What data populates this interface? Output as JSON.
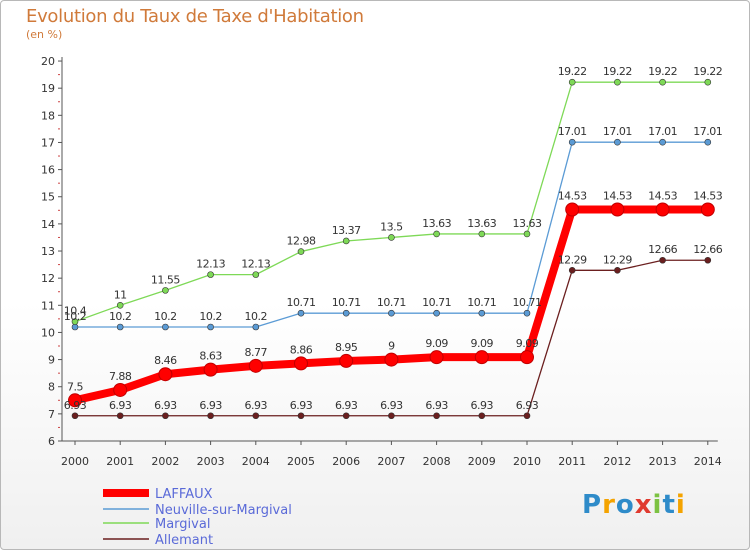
{
  "chart_data": {
    "type": "line",
    "title": "Evolution du Taux de Taxe d'Habitation",
    "ylabel": "(en %)",
    "x": [
      "2000",
      "2001",
      "2002",
      "2003",
      "2004",
      "2005",
      "2006",
      "2007",
      "2008",
      "2009",
      "2010",
      "2011",
      "2012",
      "2013",
      "2014"
    ],
    "ylim": [
      6,
      20
    ],
    "yticks": [
      "6",
      "7",
      "8",
      "9",
      "10",
      "11",
      "12",
      "13",
      "14",
      "15",
      "16",
      "17",
      "18",
      "19",
      "20"
    ],
    "grid": false,
    "legend": "bottom-left",
    "series": [
      {
        "name": "LAFFAUX",
        "color": "#ff0000",
        "values": [
          7.5,
          7.88,
          8.46,
          8.63,
          8.77,
          8.86,
          8.95,
          9,
          9.09,
          9.09,
          9.09,
          14.53,
          14.53,
          14.53,
          14.53
        ]
      },
      {
        "name": "Neuville-sur-Margival",
        "color": "#5b9bd5",
        "values": [
          10.2,
          10.2,
          10.2,
          10.2,
          10.2,
          10.71,
          10.71,
          10.71,
          10.71,
          10.71,
          10.71,
          17.01,
          17.01,
          17.01,
          17.01
        ]
      },
      {
        "name": "Margival",
        "color": "#7ed957",
        "values": [
          10.4,
          11,
          11.55,
          12.13,
          12.13,
          12.98,
          13.37,
          13.5,
          13.63,
          13.63,
          13.63,
          19.22,
          19.22,
          19.22,
          19.22
        ]
      },
      {
        "name": "Allemant",
        "color": "#6b1f1f",
        "values": [
          6.93,
          6.93,
          6.93,
          6.93,
          6.93,
          6.93,
          6.93,
          6.93,
          6.93,
          6.93,
          6.93,
          12.29,
          12.29,
          12.66,
          12.66
        ]
      }
    ]
  },
  "labels": {
    "LAFFAUX": [
      "7.5",
      "7.88",
      "8.46",
      "8.63",
      "8.77",
      "8.86",
      "8.95",
      "9",
      "9.09",
      "9.09",
      "9.09",
      "14.53",
      "14.53",
      "14.53",
      "14.53"
    ],
    "Neuville-sur-Margival": [
      "10.2",
      "10.2",
      "10.2",
      "10.2",
      "10.2",
      "10.71",
      "10.71",
      "10.71",
      "10.71",
      "10.71",
      "10.71",
      "17.01",
      "17.01",
      "17.01",
      "17.01"
    ],
    "Margival": [
      "10.4",
      "11",
      "11.55",
      "12.13",
      "12.13",
      "12.98",
      "13.37",
      "13.5",
      "13.63",
      "13.63",
      "13.63",
      "19.22",
      "19.22",
      "19.22",
      "19.22"
    ],
    "Allemant": [
      "6.93",
      "6.93",
      "6.93",
      "6.93",
      "6.93",
      "6.93",
      "6.93",
      "6.93",
      "6.93",
      "6.93",
      "6.93",
      "12.29",
      "12.29",
      "12.66",
      "12.66"
    ]
  },
  "logo": {
    "text": "Proxiti",
    "colors": [
      "#2e8bc9",
      "#f4a300",
      "#2e8bc9",
      "#e03a2f",
      "#7cc242",
      "#2e8bc9",
      "#f4a300"
    ]
  }
}
